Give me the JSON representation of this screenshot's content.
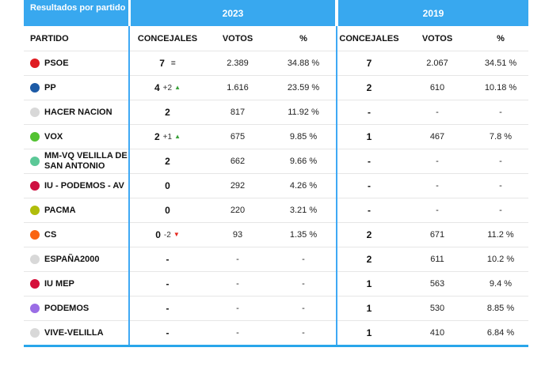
{
  "title": "Resultados por partido",
  "years": {
    "y2023": "2023",
    "y2019": "2019"
  },
  "columns": {
    "partido": "PARTIDO",
    "concejales": "CONCEJALES",
    "votos": "VOTOS",
    "pct": "%"
  },
  "colors": {
    "header_blue": "#38a8ef",
    "separator_blue": "#3fa9f5",
    "bottom_border_blue": "#29a6ea",
    "row_line_gray": "#e6e6e6",
    "up_green": "#3aa13a",
    "down_red": "#e6281e"
  },
  "chart_data": {
    "type": "table",
    "title": "Resultados por partido",
    "groups": [
      "2023",
      "2019"
    ],
    "columns": [
      "PARTIDO",
      "CONCEJALES",
      "VOTOS",
      "%",
      "CONCEJALES",
      "VOTOS",
      "%"
    ],
    "rows": [
      {
        "party": "PSOE",
        "dot_color": "#df1b21",
        "y2023": {
          "concejales": "7",
          "change": "",
          "direction": "equal",
          "votos": "2.389",
          "pct": "34.88 %"
        },
        "y2019": {
          "concejales": "7",
          "votos": "2.067",
          "pct": "34.51 %"
        }
      },
      {
        "party": "PP",
        "dot_color": "#1c5aa6",
        "y2023": {
          "concejales": "4",
          "change": "+2",
          "direction": "up",
          "votos": "1.616",
          "pct": "23.59 %"
        },
        "y2019": {
          "concejales": "2",
          "votos": "610",
          "pct": "10.18 %"
        }
      },
      {
        "party": "HACER NACION",
        "dot_color": "#d8d8d8",
        "y2023": {
          "concejales": "2",
          "change": "",
          "direction": "none",
          "votos": "817",
          "pct": "11.92 %"
        },
        "y2019": {
          "concejales": "-",
          "votos": "-",
          "pct": "-"
        }
      },
      {
        "party": "VOX",
        "dot_color": "#52c231",
        "y2023": {
          "concejales": "2",
          "change": "+1",
          "direction": "up",
          "votos": "675",
          "pct": "9.85 %"
        },
        "y2019": {
          "concejales": "1",
          "votos": "467",
          "pct": "7.8 %"
        }
      },
      {
        "party": "MM-VQ VELILLA DE SAN ANTONIO",
        "dot_color": "#5bc897",
        "y2023": {
          "concejales": "2",
          "change": "",
          "direction": "none",
          "votos": "662",
          "pct": "9.66 %"
        },
        "y2019": {
          "concejales": "-",
          "votos": "-",
          "pct": "-"
        }
      },
      {
        "party": "IU - PODEMOS - AV",
        "dot_color": "#ce1041",
        "y2023": {
          "concejales": "0",
          "change": "",
          "direction": "none",
          "votos": "292",
          "pct": "4.26 %"
        },
        "y2019": {
          "concejales": "-",
          "votos": "-",
          "pct": "-"
        }
      },
      {
        "party": "PACMA",
        "dot_color": "#b0bd0b",
        "y2023": {
          "concejales": "0",
          "change": "",
          "direction": "none",
          "votos": "220",
          "pct": "3.21 %"
        },
        "y2019": {
          "concejales": "-",
          "votos": "-",
          "pct": "-"
        }
      },
      {
        "party": "CS",
        "dot_color": "#fa6412",
        "y2023": {
          "concejales": "0",
          "change": "-2",
          "direction": "down",
          "votos": "93",
          "pct": "1.35 %"
        },
        "y2019": {
          "concejales": "2",
          "votos": "671",
          "pct": "11.2 %"
        }
      },
      {
        "party": "ESPAÑA2000",
        "dot_color": "#d8d8d8",
        "y2023": {
          "concejales": "-",
          "change": "",
          "direction": "none",
          "votos": "-",
          "pct": "-"
        },
        "y2019": {
          "concejales": "2",
          "votos": "611",
          "pct": "10.2 %"
        }
      },
      {
        "party": "IU MEP",
        "dot_color": "#d50f3a",
        "y2023": {
          "concejales": "-",
          "change": "",
          "direction": "none",
          "votos": "-",
          "pct": "-"
        },
        "y2019": {
          "concejales": "1",
          "votos": "563",
          "pct": "9.4 %"
        }
      },
      {
        "party": "PODEMOS",
        "dot_color": "#9a6de5",
        "y2023": {
          "concejales": "-",
          "change": "",
          "direction": "none",
          "votos": "-",
          "pct": "-"
        },
        "y2019": {
          "concejales": "1",
          "votos": "530",
          "pct": "8.85 %"
        }
      },
      {
        "party": "VIVE-VELILLA",
        "dot_color": "#d8d8d8",
        "y2023": {
          "concejales": "-",
          "change": "",
          "direction": "none",
          "votos": "-",
          "pct": "-"
        },
        "y2019": {
          "concejales": "1",
          "votos": "410",
          "pct": "6.84 %"
        }
      }
    ]
  }
}
